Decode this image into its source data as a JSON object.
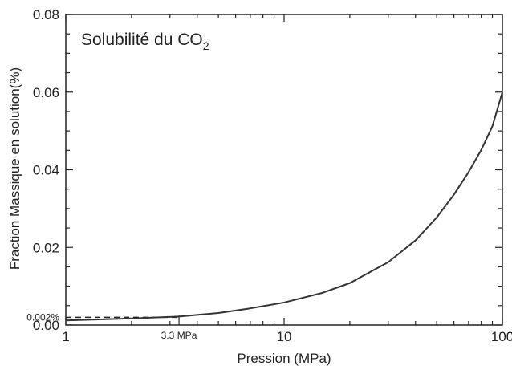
{
  "chart_data": {
    "type": "line",
    "title": "Solubilité du CO",
    "title_subscript": "2",
    "xlabel": "Pression (MPa)",
    "ylabel": "Fraction Massique en solution(%)",
    "x_scale": "log",
    "xlim": [
      1,
      100
    ],
    "ylim": [
      0,
      0.08
    ],
    "x_ticks": [
      {
        "value": 1,
        "label": "1"
      },
      {
        "value": 10,
        "label": "10"
      },
      {
        "value": 100,
        "label": "100"
      }
    ],
    "y_ticks": [
      {
        "value": 0.0,
        "label": "0.00"
      },
      {
        "value": 0.02,
        "label": "0.02"
      },
      {
        "value": 0.04,
        "label": "0.04"
      },
      {
        "value": 0.06,
        "label": "0.06"
      },
      {
        "value": 0.08,
        "label": "0.08"
      }
    ],
    "grid": false,
    "legend": "none",
    "series": [
      {
        "style": "solid",
        "color": "#333333",
        "x": [
          1,
          2,
          3.3,
          5,
          7,
          10,
          15,
          20,
          30,
          40,
          50,
          60,
          70,
          80,
          90,
          100
        ],
        "y": [
          0.0012,
          0.0017,
          0.0022,
          0.0031,
          0.0043,
          0.0058,
          0.0083,
          0.0108,
          0.0162,
          0.0218,
          0.0277,
          0.0336,
          0.0394,
          0.0451,
          0.0512,
          0.06
        ]
      }
    ],
    "reference_lines": [
      {
        "style": "dashed",
        "y": 0.002,
        "x_from": 1,
        "x_to": 3.3,
        "label": "0.002%"
      },
      {
        "style": "tick",
        "x": 3.3,
        "label": "3.3 MPa"
      }
    ]
  }
}
